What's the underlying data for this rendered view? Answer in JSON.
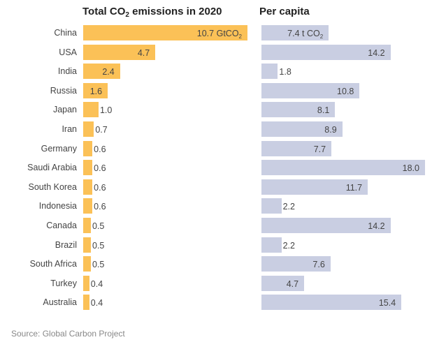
{
  "chart_data": [
    {
      "type": "bar",
      "orientation": "horizontal",
      "title": "Total CO2 emissions in 2020",
      "title_parts": {
        "pre": "Total CO",
        "sub": "2",
        "post": " emissions in 2020"
      },
      "unit_label": {
        "pre": "GtCO",
        "sub": "2"
      },
      "unit_on_first_label": true,
      "color": "#fbc157",
      "xlim": [
        0,
        10.7
      ],
      "categories": [
        "China",
        "USA",
        "India",
        "Russia",
        "Japan",
        "Iran",
        "Germany",
        "Saudi Arabia",
        "South Korea",
        "Indonesia",
        "Canada",
        "Brazil",
        "South Africa",
        "Turkey",
        "Australia"
      ],
      "values": [
        10.7,
        4.7,
        2.4,
        1.6,
        1.0,
        0.7,
        0.6,
        0.6,
        0.6,
        0.6,
        0.5,
        0.5,
        0.5,
        0.4,
        0.4
      ],
      "labels": [
        "10.7",
        "4.7",
        "2.4",
        "1.6",
        "1.0",
        "0.7",
        "0.6",
        "0.6",
        "0.6",
        "0.6",
        "0.5",
        "0.5",
        "0.5",
        "0.4",
        "0.4"
      ]
    },
    {
      "type": "bar",
      "orientation": "horizontal",
      "title": "Per capita",
      "unit_label": {
        "pre": "t CO",
        "sub": "2"
      },
      "unit_on_first_label": true,
      "color": "#c9cee2",
      "xlim": [
        0,
        18.0
      ],
      "categories": [
        "China",
        "USA",
        "India",
        "Russia",
        "Japan",
        "Iran",
        "Germany",
        "Saudi Arabia",
        "South Korea",
        "Indonesia",
        "Canada",
        "Brazil",
        "South Africa",
        "Turkey",
        "Australia"
      ],
      "values": [
        7.4,
        14.2,
        1.8,
        10.8,
        8.1,
        8.9,
        7.7,
        18.0,
        11.7,
        2.2,
        14.2,
        2.2,
        7.6,
        4.7,
        15.4
      ],
      "labels": [
        "7.4",
        "14.2",
        "1.8",
        "10.8",
        "8.1",
        "8.9",
        "7.7",
        "18.0",
        "11.7",
        "2.2",
        "14.2",
        "2.2",
        "7.6",
        "4.7",
        "15.4"
      ]
    }
  ],
  "source": "Source: Global Carbon Project",
  "titles": {
    "left_pre": "Total CO",
    "left_sub": "2",
    "left_post": " emissions in 2020",
    "right": "Per capita"
  }
}
